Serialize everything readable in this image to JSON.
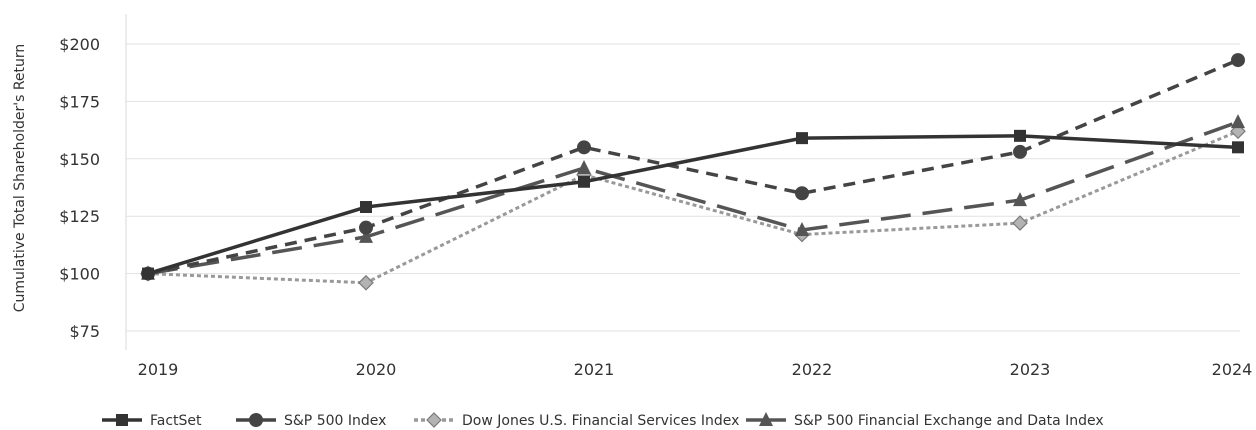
{
  "chart_data": {
    "type": "line",
    "title": "",
    "xlabel": "",
    "ylabel": "Cumulative Total Shareholder's Return",
    "categories": [
      "2019",
      "2020",
      "2021",
      "2022",
      "2023",
      "2024"
    ],
    "ylim": [
      75,
      200
    ],
    "yticks": [
      75,
      100,
      125,
      150,
      175,
      200
    ],
    "ytick_labels": [
      "$75",
      "$100",
      "$125",
      "$150",
      "$175",
      "$200"
    ],
    "grid": true,
    "legend_position": "bottom",
    "series": [
      {
        "name": "FactSet",
        "values": [
          100,
          129,
          140,
          159,
          160,
          155
        ],
        "color": "#333333",
        "marker": "square",
        "dash": "solid"
      },
      {
        "name": "S&P 500 Index",
        "values": [
          100,
          120,
          155,
          135,
          153,
          193
        ],
        "color": "#444444",
        "marker": "circle",
        "dash": "short-dash"
      },
      {
        "name": "Dow Jones U.S. Financial Services Index",
        "values": [
          100,
          96,
          143,
          117,
          122,
          162
        ],
        "color": "#999999",
        "marker": "diamond",
        "dash": "dotted"
      },
      {
        "name": "S&P 500 Financial Exchange and Data Index",
        "values": [
          100,
          116,
          146,
          119,
          132,
          166
        ],
        "color": "#555555",
        "marker": "triangle",
        "dash": "long-dash"
      }
    ]
  }
}
